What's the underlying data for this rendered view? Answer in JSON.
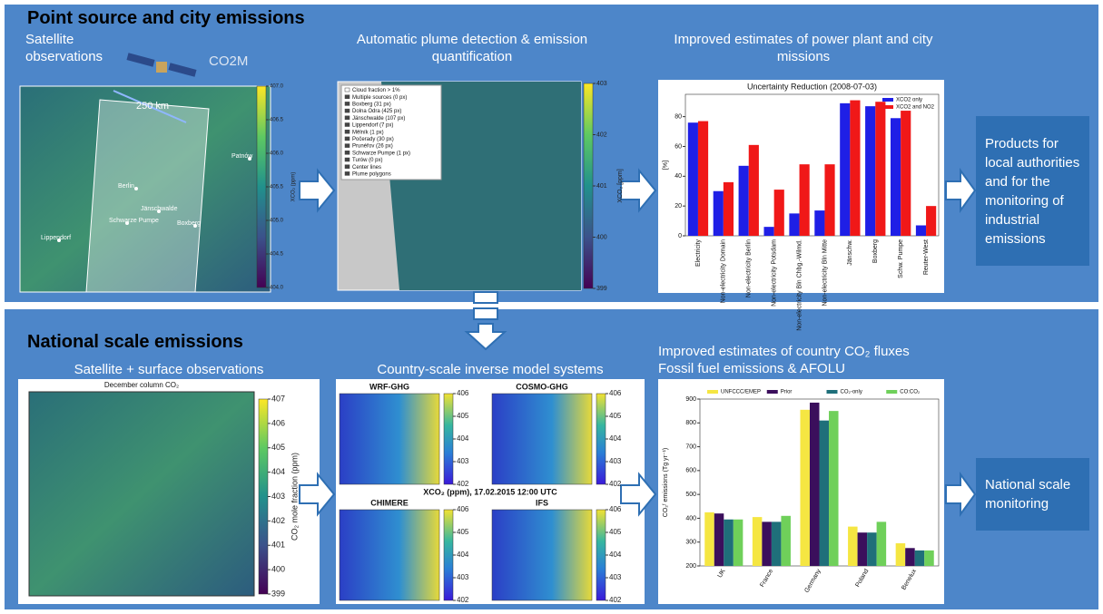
{
  "top": {
    "title": "Point source and city emissions",
    "satellite_caption": "Satellite observations",
    "satellite_name": "CO2M",
    "swath_width": "250 km",
    "map": {
      "cities": [
        "Berlin",
        "Jänschwalde",
        "Schwarze Pumpe",
        "Boxberg",
        "Lippendorf",
        "Patnów"
      ],
      "colorbar": {
        "label": "XCO₂ (ppm)",
        "lim": [
          404,
          407
        ],
        "ticks": [
          {
            "value": 404,
            "label": "404.0"
          },
          404.5,
          {
            "value": 405,
            "label": "405.0"
          },
          405.5,
          {
            "value": 406,
            "label": "406.0"
          },
          406.5,
          {
            "value": 407,
            "label": "407.0"
          }
        ]
      }
    },
    "plume_caption": "Automatic plume detection & emission quantification",
    "plume_map": {
      "legend": [
        "Cloud fraction > 1%",
        "Multiple sources (0 px)",
        "Boxberg (31 px)",
        "Dolna Odra (425 px)",
        "Jänschwalde (107 px)",
        "Lippendorf (7 px)",
        "Mělník (1 px)",
        "Počerady (30 px)",
        "Prunéřov (26 px)",
        "Schwarze Pumpe (1 px)",
        "Turów (0 px)",
        "Center lines",
        "Plume polygons"
      ],
      "colorbar": {
        "label": "XCO₂ [ppm]",
        "lim": [
          399,
          403
        ],
        "ticks": [
          399,
          400,
          401,
          402,
          403
        ]
      }
    },
    "chart_caption": "Improved estimates of power plant and city missions",
    "chart": {
      "type": "bar",
      "title": "Uncertainty Reduction (2008-07-03)",
      "ylabel": "[%]",
      "categories": [
        "Electricity",
        "Non-electricity Domain",
        "Non-electricity Berlin",
        "Non-electricity Potsdam",
        "Non-electricity Bln Chbg.-Wilmd.",
        "Non-electricity Bln Mitte",
        "Jänschw.",
        "Boxberg",
        "Schw. Pumpe",
        "Reuter-West"
      ],
      "series": [
        {
          "name": "XCO2 only",
          "color": "#1f1fe6",
          "values": [
            76,
            30,
            47,
            6,
            15,
            17,
            89,
            87,
            79,
            7
          ]
        },
        {
          "name": "XCO2 and NO2",
          "color": "#f01818",
          "values": [
            77,
            36,
            61,
            31,
            48,
            48,
            91,
            90,
            84,
            20
          ]
        }
      ],
      "ylim": [
        0,
        95
      ],
      "yticks": [
        0,
        20,
        40,
        60,
        80
      ],
      "legend": "upper right"
    },
    "product": "Products for local authorities and for the monitoring of industrial emissions"
  },
  "bottom": {
    "title": "National scale emissions",
    "obs_caption": "Satellite + surface observations",
    "map": {
      "title": "December column CO₂",
      "colorbar": {
        "label": "CO₂ mole fraction (ppm)",
        "lim": [
          399,
          407
        ],
        "ticks": [
          399,
          400,
          401,
          402,
          403,
          404,
          405,
          406,
          407
        ]
      }
    },
    "models_caption": "Country-scale inverse model systems",
    "models_note": "XCO₂ (ppm), 17.02.2015 12:00 UTC",
    "models": [
      {
        "name": "WRF-GHG",
        "colorbar": {
          "lim": [
            402,
            406
          ],
          "ticks": [
            402,
            403,
            404,
            405,
            406
          ]
        }
      },
      {
        "name": "COSMO-GHG",
        "colorbar": {
          "lim": [
            402,
            406
          ],
          "ticks": [
            402,
            403,
            404,
            405,
            406
          ]
        }
      },
      {
        "name": "CHIMERE",
        "colorbar": {
          "lim": [
            402,
            406
          ],
          "ticks": [
            402,
            403,
            404,
            405,
            406
          ]
        }
      },
      {
        "name": "IFS",
        "colorbar": {
          "lim": [
            402,
            406
          ],
          "ticks": [
            402,
            403,
            404,
            405,
            406
          ]
        }
      }
    ],
    "chart_caption": [
      "Improved estimates of country CO₂ fluxes",
      "Fossil fuel emissions & AFOLU"
    ],
    "chart": {
      "type": "bar",
      "ylabel": "CO₂ᶠ emissions (Tg yr⁻¹)",
      "categories": [
        "UK",
        "France",
        "Germany",
        "Poland",
        "Benelux"
      ],
      "series": [
        {
          "name": "UNFCCC/EMEP",
          "color": "#f5e642",
          "values": [
            425,
            405,
            855,
            365,
            295
          ]
        },
        {
          "name": "Prior",
          "color": "#3b0f5c",
          "values": [
            420,
            385,
            885,
            340,
            275
          ]
        },
        {
          "name": "CO₂-only",
          "color": "#1f6f7a",
          "values": [
            395,
            385,
            810,
            340,
            265
          ]
        },
        {
          "name": "CO:CO₂",
          "color": "#6fd05a",
          "values": [
            395,
            410,
            850,
            385,
            265
          ]
        }
      ],
      "ylim": [
        200,
        900
      ],
      "yticks": [
        200,
        300,
        400,
        500,
        600,
        700,
        800,
        900
      ],
      "legend": "upper center"
    },
    "product": "National scale monitoring"
  }
}
